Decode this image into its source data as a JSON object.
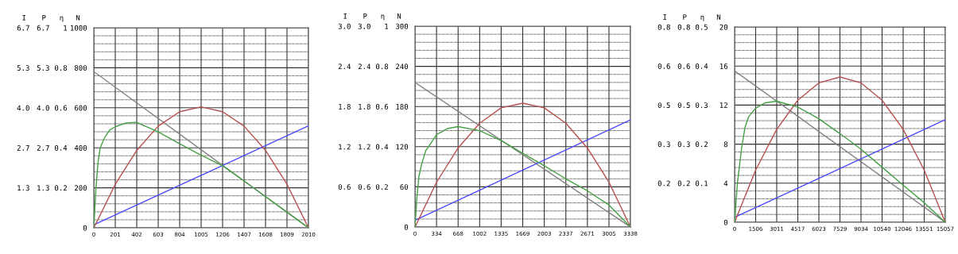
{
  "chart_data": [
    {
      "type": "line",
      "ylabel": "N",
      "y2label": "η",
      "y3label": "P",
      "annotations": [
        "I"
      ],
      "grid": true,
      "xlim": [
        0,
        2010
      ],
      "xticks": [
        0,
        201,
        402,
        603,
        804,
        1005,
        1206,
        1407,
        1608,
        1809,
        2010
      ],
      "ylim": [
        0,
        1000
      ],
      "yticks": [
        0,
        200,
        400,
        600,
        800,
        1000
      ],
      "y2lim": [
        0,
        1
      ],
      "y2ticks": [
        {
          "value": 0.2,
          "label": "0.2"
        },
        {
          "value": 0.4,
          "label": "0.4"
        },
        {
          "value": 0.6,
          "label": "0.6"
        },
        {
          "value": 0.8,
          "label": "0.8"
        },
        {
          "value": 1,
          "label": "1"
        }
      ],
      "y3lim": [
        0,
        6.667
      ],
      "y3ticks": [
        {
          "value": 1.333,
          "label": "1.3"
        },
        {
          "value": 2.667,
          "label": "2.7"
        },
        {
          "value": 4.0,
          "label": "4.0"
        },
        {
          "value": 5.333,
          "label": "5.3"
        },
        {
          "value": 6.667,
          "label": "6.7"
        }
      ],
      "series": [
        {
          "axis": "y",
          "color": "#808080",
          "x": [
            0,
            2010
          ],
          "values": [
            781,
            0
          ]
        },
        {
          "axis": "y3",
          "color": "#4a4aff",
          "x": [
            0,
            2010
          ],
          "values": [
            0.1,
            3.4
          ]
        },
        {
          "axis": "y3",
          "color": "#b85050",
          "x": [
            0,
            201,
            402,
            603,
            804,
            1005,
            1206,
            1407,
            1608,
            1809,
            2010
          ],
          "values": [
            0,
            1.45,
            2.58,
            3.39,
            3.87,
            4.03,
            3.87,
            3.39,
            2.58,
            1.45,
            0
          ]
        },
        {
          "axis": "y2",
          "color": "#45a045",
          "x": [
            0,
            20,
            40,
            60,
            100,
            150,
            200,
            300,
            400,
            603,
            804,
            1005,
            1206,
            1407,
            1608,
            1809,
            2010
          ],
          "values": [
            0,
            0.2,
            0.33,
            0.4,
            0.45,
            0.49,
            0.505,
            0.524,
            0.527,
            0.48,
            0.42,
            0.363,
            0.31,
            0.234,
            0.156,
            0.078,
            0
          ]
        }
      ]
    },
    {
      "type": "line",
      "ylabel": "N",
      "y2label": "η",
      "y3label": "P",
      "annotations": [
        "I"
      ],
      "grid": true,
      "xlim": [
        0,
        3338
      ],
      "xticks": [
        0,
        334,
        668,
        1002,
        1335,
        1669,
        2003,
        2337,
        2671,
        3005,
        3338
      ],
      "ylim": [
        0,
        300
      ],
      "yticks": [
        0,
        60,
        120,
        180,
        240,
        300
      ],
      "y2lim": [
        0,
        1
      ],
      "y2ticks": [
        {
          "value": 0.2,
          "label": "0.2"
        },
        {
          "value": 0.4,
          "label": "0.4"
        },
        {
          "value": 0.6,
          "label": "0.6"
        },
        {
          "value": 0.8,
          "label": "0.8"
        },
        {
          "value": 1,
          "label": "1"
        }
      ],
      "y3lim": [
        0,
        3.0
      ],
      "y3ticks": [
        {
          "value": 0.6,
          "label": "0.6"
        },
        {
          "value": 1.2,
          "label": "1.2"
        },
        {
          "value": 1.8,
          "label": "1.8"
        },
        {
          "value": 2.4,
          "label": "2.4"
        },
        {
          "value": 3.0,
          "label": "3.0"
        }
      ],
      "series": [
        {
          "axis": "y",
          "color": "#808080",
          "x": [
            0,
            3338
          ],
          "values": [
            216,
            0
          ]
        },
        {
          "axis": "y3",
          "color": "#4a4aff",
          "x": [
            0,
            3338
          ],
          "values": [
            0.1,
            1.6
          ]
        },
        {
          "axis": "y3",
          "color": "#b85050",
          "x": [
            0,
            334,
            668,
            1002,
            1335,
            1669,
            2003,
            2337,
            2671,
            3005,
            3338
          ],
          "values": [
            0,
            0.67,
            1.18,
            1.55,
            1.78,
            1.85,
            1.78,
            1.55,
            1.18,
            0.67,
            0
          ]
        },
        {
          "axis": "y2",
          "color": "#45a045",
          "x": [
            0,
            30,
            60,
            100,
            167,
            334,
            500,
            668,
            1002,
            1335,
            1669,
            2003,
            2337,
            2671,
            3005,
            3338
          ],
          "values": [
            0,
            0.15,
            0.25,
            0.31,
            0.38,
            0.46,
            0.49,
            0.5,
            0.48,
            0.43,
            0.367,
            0.305,
            0.24,
            0.18,
            0.11,
            0
          ]
        }
      ]
    },
    {
      "type": "line",
      "ylabel": "N",
      "y2label": "η",
      "y3label": "P",
      "annotations": [
        "I"
      ],
      "grid": true,
      "xlim": [
        0,
        15057
      ],
      "xticks": [
        0,
        1506,
        3011,
        4517,
        6023,
        7529,
        9034,
        10540,
        12046,
        13551,
        15057
      ],
      "ylim": [
        0,
        20
      ],
      "yticks": [
        0,
        4,
        8,
        12,
        16,
        20
      ],
      "y2lim": [
        0,
        0.5
      ],
      "y2ticks": [
        {
          "value": 0.1,
          "label": "0.1"
        },
        {
          "value": 0.2,
          "label": "0.2"
        },
        {
          "value": 0.3,
          "label": "0.3"
        },
        {
          "value": 0.4,
          "label": "0.4"
        },
        {
          "value": 0.5,
          "label": "0.5"
        }
      ],
      "y3lim": [
        0,
        0.8
      ],
      "y3ticks": [
        {
          "value": 0.16,
          "label": "0.2"
        },
        {
          "value": 0.32,
          "label": "0.3"
        },
        {
          "value": 0.48,
          "label": "0.5"
        },
        {
          "value": 0.64,
          "label": "0.6"
        },
        {
          "value": 0.8,
          "label": "0.8"
        }
      ],
      "series": [
        {
          "axis": "y",
          "color": "#808080",
          "x": [
            0,
            15057
          ],
          "values": [
            15.5,
            0
          ]
        },
        {
          "axis": "y3",
          "color": "#4a4aff",
          "x": [
            0,
            15057
          ],
          "values": [
            0.02,
            0.42
          ]
        },
        {
          "axis": "y3",
          "color": "#b85050",
          "x": [
            0,
            1506,
            3011,
            4517,
            6023,
            7529,
            9034,
            10540,
            12046,
            13551,
            15057
          ],
          "values": [
            0,
            0.214,
            0.381,
            0.5,
            0.571,
            0.595,
            0.571,
            0.5,
            0.381,
            0.214,
            0
          ]
        },
        {
          "axis": "y2",
          "color": "#45a045",
          "x": [
            0,
            200,
            500,
            750,
            1000,
            1506,
            2200,
            3011,
            4517,
            6023,
            7529,
            9034,
            10540,
            12046,
            13551,
            15057
          ],
          "values": [
            0,
            0.1,
            0.19,
            0.244,
            0.27,
            0.292,
            0.306,
            0.31,
            0.295,
            0.265,
            0.227,
            0.187,
            0.141,
            0.095,
            0.05,
            0
          ]
        }
      ]
    }
  ]
}
